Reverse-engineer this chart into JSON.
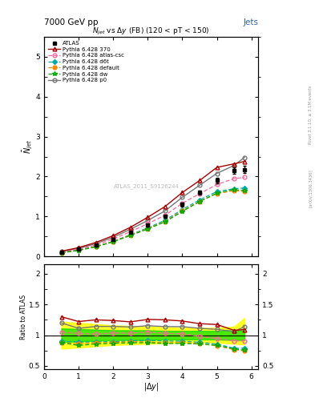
{
  "title_left": "7000 GeV pp",
  "title_right": "Jets",
  "plot_title": "N$_{jet}$ vs Δy (FB) (120 < pT < 150)",
  "watermark": "ATLAS_2011_S9126244",
  "right_label1": "Rivet 3.1.10, ≥ 3.1M events",
  "right_label2": "[arXiv:1306.3436]",
  "xlabel": "$|\\Delta y|$",
  "ylabel_main": "$\\bar{N}_{jet}$",
  "ylabel_ratio": "Ratio to ATLAS",
  "xlim": [
    0,
    6.2
  ],
  "ylim_main": [
    0,
    5.5
  ],
  "ylim_ratio": [
    0.45,
    2.15
  ],
  "dy": [
    0.5,
    1.0,
    1.5,
    2.0,
    2.5,
    3.0,
    3.5,
    4.0,
    4.5,
    5.0,
    5.5,
    5.8
  ],
  "atlas_y": [
    0.1,
    0.18,
    0.28,
    0.42,
    0.6,
    0.78,
    1.0,
    1.3,
    1.6,
    1.9,
    2.15,
    2.18
  ],
  "atlas_yerr": [
    0.008,
    0.01,
    0.014,
    0.018,
    0.022,
    0.028,
    0.035,
    0.045,
    0.055,
    0.065,
    0.075,
    0.085
  ],
  "p370_y": [
    0.13,
    0.22,
    0.35,
    0.52,
    0.73,
    0.98,
    1.25,
    1.6,
    1.9,
    2.23,
    2.32,
    2.38
  ],
  "atl_csc_y": [
    0.105,
    0.185,
    0.285,
    0.435,
    0.62,
    0.82,
    1.03,
    1.33,
    1.57,
    1.8,
    1.95,
    1.98
  ],
  "d6t_y": [
    0.09,
    0.16,
    0.25,
    0.375,
    0.545,
    0.715,
    0.905,
    1.175,
    1.415,
    1.625,
    1.695,
    1.715
  ],
  "default_y": [
    0.088,
    0.155,
    0.245,
    0.37,
    0.535,
    0.695,
    0.875,
    1.145,
    1.375,
    1.575,
    1.645,
    1.625
  ],
  "dw_y": [
    0.088,
    0.15,
    0.24,
    0.365,
    0.525,
    0.685,
    0.865,
    1.125,
    1.375,
    1.585,
    1.675,
    1.645
  ],
  "p0_y": [
    0.12,
    0.2,
    0.32,
    0.48,
    0.68,
    0.9,
    1.14,
    1.48,
    1.78,
    2.08,
    2.28,
    2.48
  ],
  "ratio_yellow_lo": [
    0.78,
    0.8,
    0.82,
    0.84,
    0.85,
    0.86,
    0.87,
    0.88,
    0.88,
    0.88,
    0.86,
    0.85
  ],
  "ratio_yellow_hi": [
    1.22,
    1.2,
    1.18,
    1.16,
    1.15,
    1.14,
    1.13,
    1.12,
    1.12,
    1.12,
    1.14,
    1.28
  ],
  "ratio_green_lo": [
    0.89,
    0.9,
    0.91,
    0.92,
    0.92,
    0.92,
    0.93,
    0.93,
    0.93,
    0.93,
    0.92,
    0.92
  ],
  "ratio_green_hi": [
    1.11,
    1.1,
    1.09,
    1.08,
    1.08,
    1.08,
    1.07,
    1.07,
    1.07,
    1.07,
    1.08,
    1.08
  ],
  "colors": {
    "atlas": "#000000",
    "p370": "#aa0000",
    "atl_csc": "#ff6699",
    "d6t": "#00aaaa",
    "default": "#ff8800",
    "dw": "#00aa00",
    "p0": "#777777"
  }
}
